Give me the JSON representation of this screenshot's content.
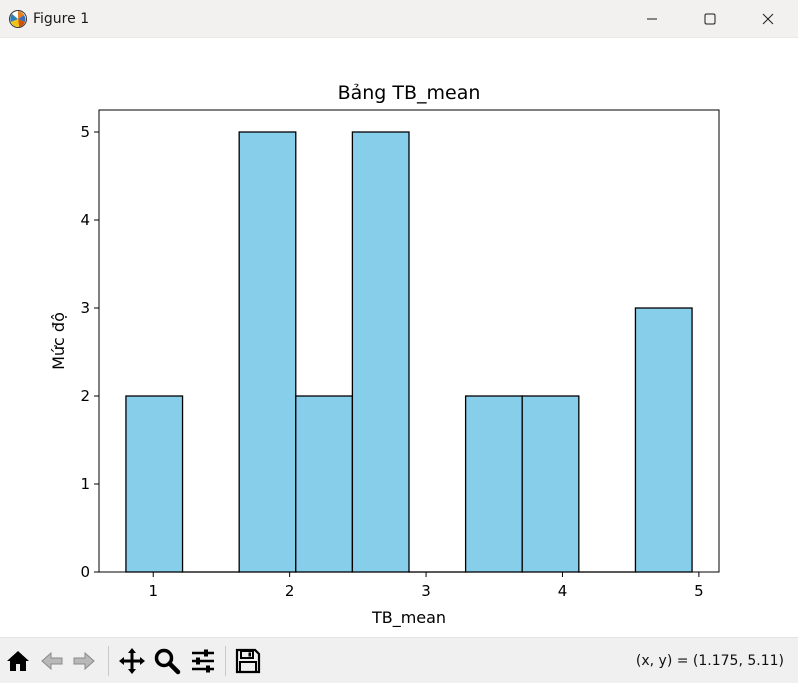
{
  "window": {
    "title": "Figure 1",
    "icon": "matplotlib-logo-icon",
    "controls": [
      "minimize-icon",
      "maximize-icon",
      "close-icon"
    ]
  },
  "toolbar": {
    "buttons": [
      "home-icon",
      "back-arrow-icon",
      "forward-arrow-icon",
      "pan-icon",
      "zoom-icon",
      "configure-subplots-icon",
      "save-icon"
    ],
    "coordinates": "(x, y) = (1.175, 5.11)"
  },
  "colors": {
    "bar_fill": "#87ceeb",
    "bar_edge": "#000000"
  },
  "chart_data": {
    "type": "bar",
    "title": "Bảng TB_mean",
    "xlabel": "TB_mean",
    "ylabel": "Mức độ",
    "bins": [
      [
        0.8,
        1.215
      ],
      [
        1.215,
        1.63
      ],
      [
        1.63,
        2.045
      ],
      [
        2.045,
        2.46
      ],
      [
        2.46,
        2.875
      ],
      [
        2.875,
        3.29
      ],
      [
        3.29,
        3.705
      ],
      [
        3.705,
        4.12
      ],
      [
        4.12,
        4.535
      ],
      [
        4.535,
        4.95
      ]
    ],
    "values": [
      2,
      0,
      5,
      2,
      5,
      0,
      2,
      2,
      0,
      3
    ],
    "xlim": [
      0.6025,
      5.1475
    ],
    "ylim": [
      0,
      5.25
    ],
    "xticks": [
      1,
      2,
      3,
      4,
      5
    ],
    "yticks": [
      0,
      1,
      2,
      3,
      4,
      5
    ],
    "grid": false,
    "legend": "none"
  }
}
